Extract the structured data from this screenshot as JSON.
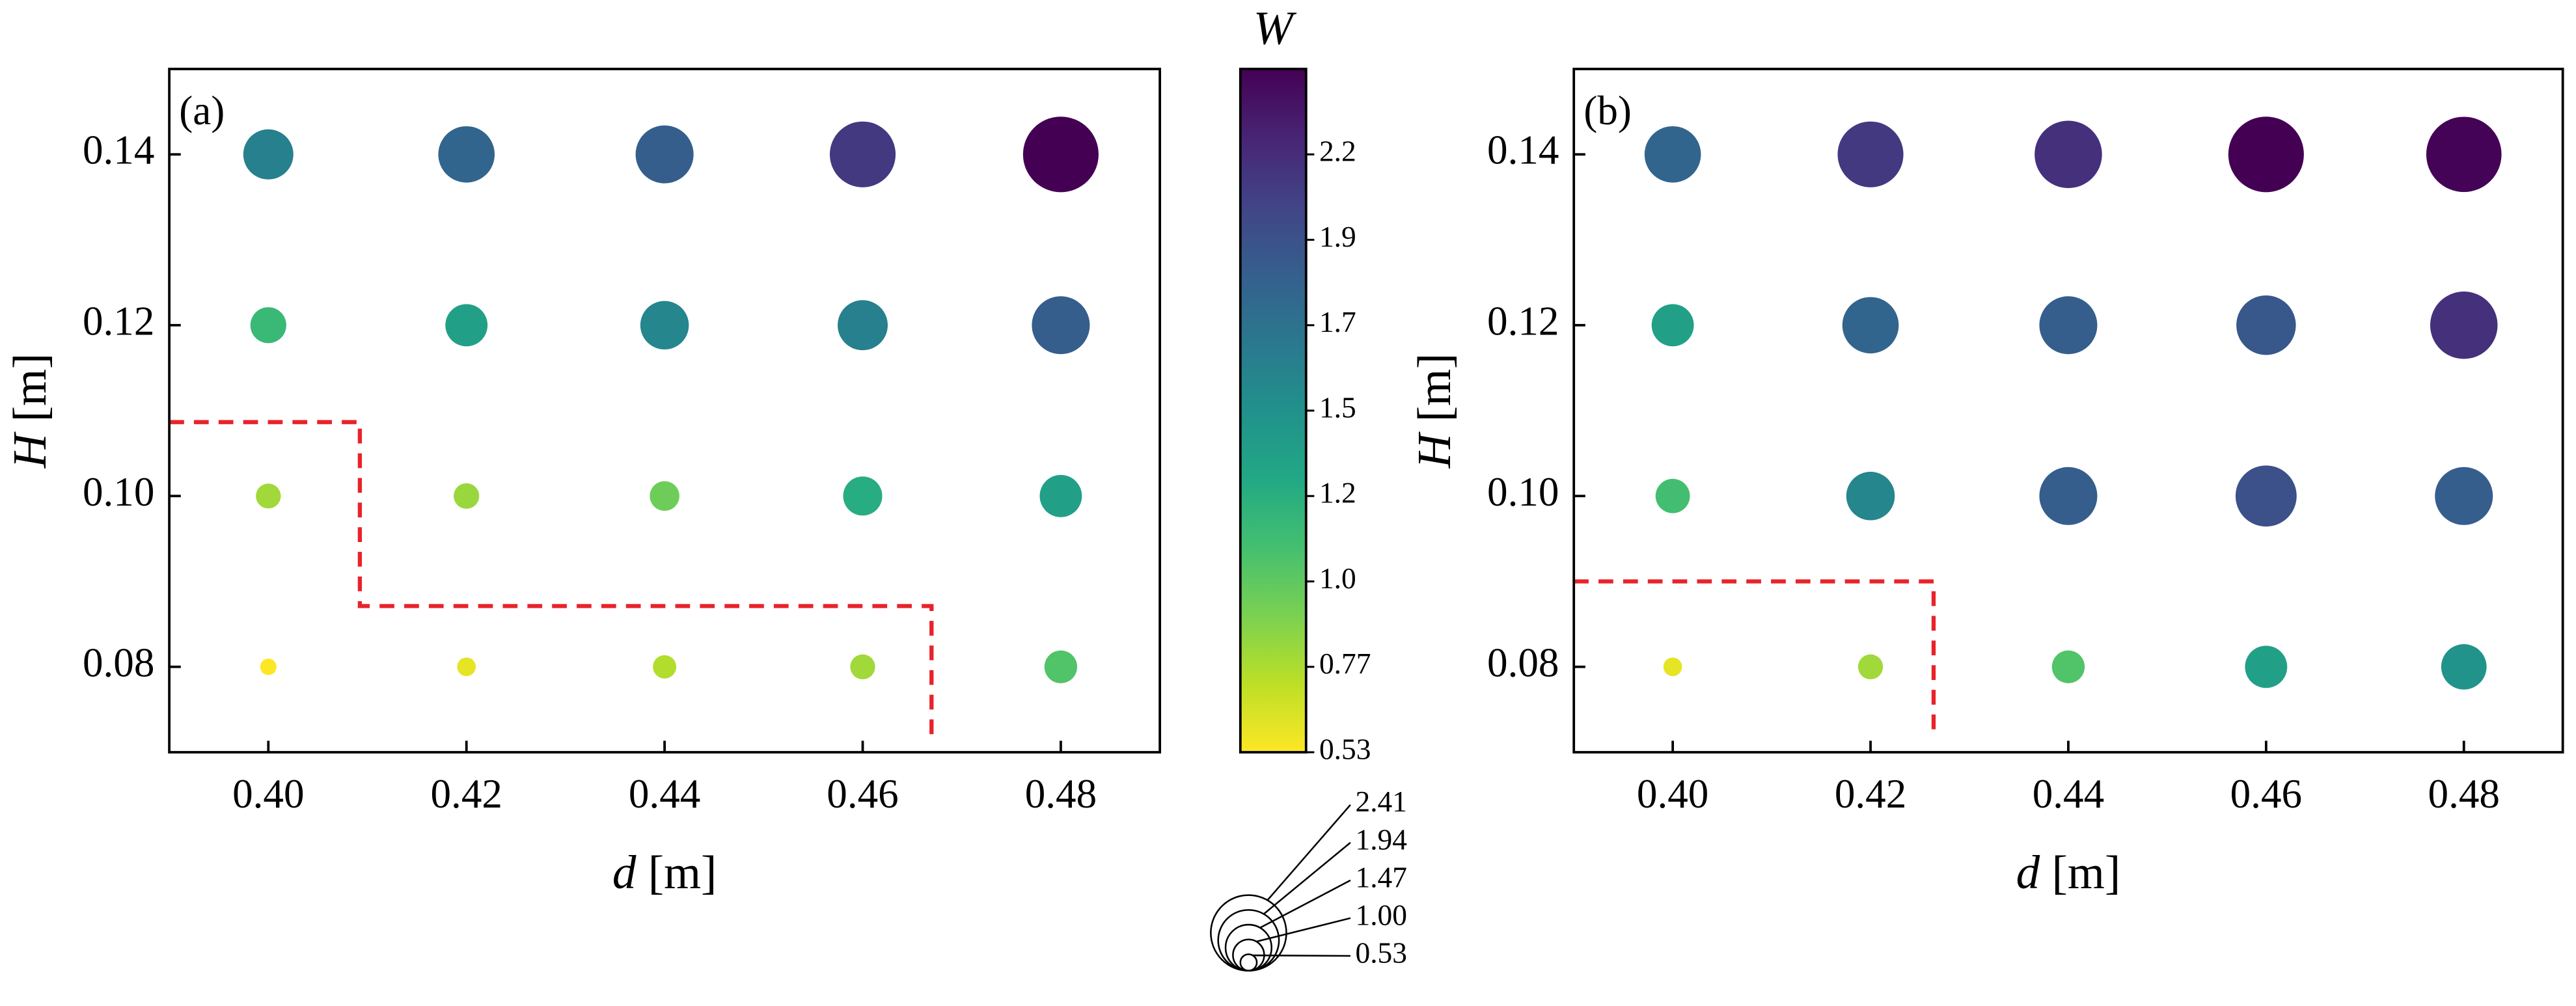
{
  "chart_data": [
    {
      "type": "scatter",
      "label": "(a)",
      "xlabel": {
        "symbol": "d",
        "unit": "[m]"
      },
      "ylabel": {
        "symbol": "H",
        "unit": "[m]"
      },
      "x": [
        0.4,
        0.42,
        0.44,
        0.46,
        0.48,
        0.4,
        0.42,
        0.44,
        0.46,
        0.48,
        0.4,
        0.42,
        0.44,
        0.46,
        0.48,
        0.4,
        0.42,
        0.44,
        0.46,
        0.48
      ],
      "y": [
        0.14,
        0.14,
        0.14,
        0.14,
        0.14,
        0.12,
        0.12,
        0.12,
        0.12,
        0.12,
        0.1,
        0.1,
        0.1,
        0.1,
        0.1,
        0.08,
        0.08,
        0.08,
        0.08,
        0.08
      ],
      "sizes": [
        1.6,
        1.8,
        1.85,
        2.1,
        2.41,
        1.15,
        1.35,
        1.55,
        1.6,
        1.85,
        0.8,
        0.82,
        0.95,
        1.25,
        1.35,
        0.53,
        0.6,
        0.75,
        0.8,
        1.05
      ],
      "xlim": [
        0.39,
        0.49
      ],
      "ylim": [
        0.07,
        0.15
      ],
      "xticks": [
        {
          "value": 0.4,
          "label": "0.40"
        },
        0.42,
        0.44,
        0.46,
        0.48
      ],
      "yticks": [
        0.08,
        {
          "value": 0.1,
          "label": "0.10"
        },
        0.12,
        0.14
      ]
    },
    {
      "type": "scatter",
      "label": "(b)",
      "xlabel": {
        "symbol": "d",
        "unit": "[m]"
      },
      "ylabel": {
        "symbol": "H",
        "unit": "[m]"
      },
      "x": [
        0.4,
        0.42,
        0.44,
        0.46,
        0.48,
        0.4,
        0.42,
        0.44,
        0.46,
        0.48,
        0.4,
        0.42,
        0.44,
        0.46,
        0.48,
        0.4,
        0.42,
        0.44,
        0.46,
        0.48
      ],
      "y": [
        0.14,
        0.14,
        0.14,
        0.14,
        0.14,
        0.12,
        0.12,
        0.12,
        0.12,
        0.12,
        0.1,
        0.1,
        0.1,
        0.1,
        0.1,
        0.08,
        0.08,
        0.08,
        0.08,
        0.08
      ],
      "sizes": [
        1.8,
        2.1,
        2.15,
        2.41,
        2.4,
        1.35,
        1.8,
        1.85,
        1.9,
        2.15,
        1.1,
        1.55,
        1.85,
        1.95,
        1.85,
        0.6,
        0.8,
        1.05,
        1.35,
        1.45
      ],
      "xlim": [
        0.39,
        0.49
      ],
      "ylim": [
        0.07,
        0.15
      ],
      "xticks": [
        {
          "value": 0.4,
          "label": "0.40"
        },
        0.42,
        0.44,
        0.46,
        0.48
      ],
      "yticks": [
        0.08,
        {
          "value": 0.1,
          "label": "0.10"
        },
        0.12,
        0.14
      ]
    }
  ],
  "colorbar": {
    "title": "W",
    "lim": [
      0.53,
      2.41
    ],
    "ticks": [
      0.53,
      {
        "value": 0.765,
        "label": "0.77"
      },
      {
        "value": 1,
        "label": "1.0"
      },
      {
        "value": 1.235,
        "label": "1.2"
      },
      {
        "value": 1.47,
        "label": "1.5"
      },
      {
        "value": 1.705,
        "label": "1.7"
      },
      {
        "value": 1.94,
        "label": "1.9"
      },
      {
        "value": 2.175,
        "label": "2.2"
      }
    ],
    "colorscale": [
      "#fde725",
      "#bddf26",
      "#7ad151",
      "#44bf70",
      "#22a884",
      "#21918c",
      "#2a788e",
      "#355f8d",
      "#414487",
      "#482475",
      "#440154"
    ]
  },
  "size_legend": {
    "values": [
      2.41,
      1.94,
      1.47,
      {
        "value": 1,
        "label": "1.00"
      },
      0.53
    ]
  }
}
